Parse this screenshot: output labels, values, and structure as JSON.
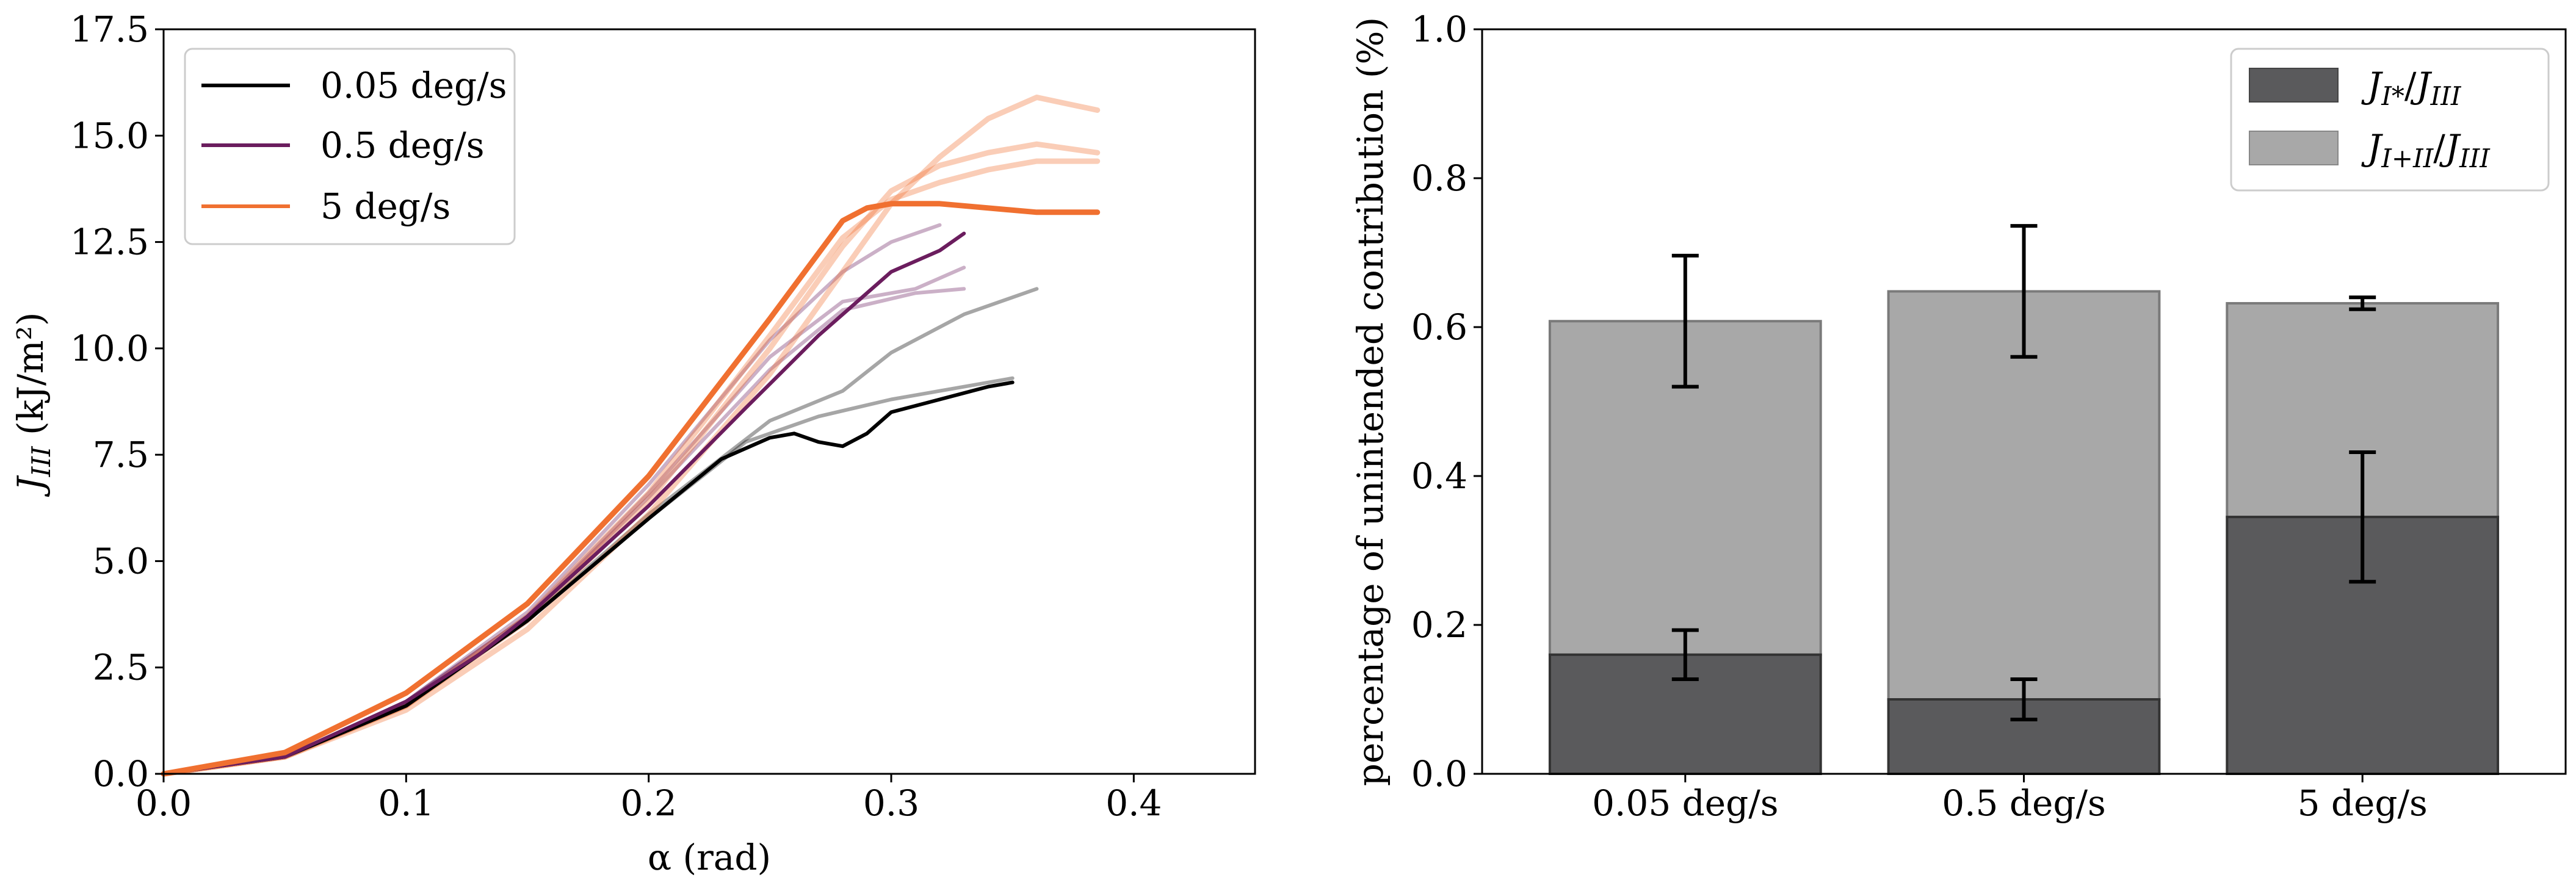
{
  "chart_data": [
    {
      "type": "line",
      "xlabel": "α (rad)",
      "ylabel_main": "J",
      "ylabel_sub": "III",
      "ylabel_unit": " (kJ/m²)",
      "xlim": [
        0,
        0.45
      ],
      "ylim": [
        0,
        17.5
      ],
      "xticks": [
        "0.0",
        "0.1",
        "0.2",
        "0.3",
        "0.4"
      ],
      "xtick_values": [
        0,
        0.1,
        0.2,
        0.3,
        0.4
      ],
      "yticks": [
        "0.0",
        "2.5",
        "5.0",
        "7.5",
        "10.0",
        "12.5",
        "15.0",
        "17.5"
      ],
      "ytick_values": [
        0,
        2.5,
        5,
        7.5,
        10,
        12.5,
        15,
        17.5
      ],
      "legend": [
        {
          "label": "0.05 deg/s",
          "color": "#000000"
        },
        {
          "label": "0.5 deg/s",
          "color": "#6b1d5e"
        },
        {
          "label": "5 deg/s",
          "color": "#f07030"
        }
      ],
      "series": [
        {
          "name": "0.05 deg/s (a)",
          "color": "#000000",
          "opacity": 1.0,
          "width": 6,
          "x": [
            0,
            0.05,
            0.1,
            0.15,
            0.2,
            0.23,
            0.25,
            0.26,
            0.27,
            0.28,
            0.29,
            0.3,
            0.32,
            0.34,
            0.35
          ],
          "y": [
            0,
            0.4,
            1.6,
            3.6,
            6.0,
            7.4,
            7.9,
            8.0,
            7.8,
            7.7,
            8.0,
            8.5,
            8.8,
            9.1,
            9.2
          ]
        },
        {
          "name": "0.05 deg/s (b)",
          "color": "#000000",
          "opacity": 0.35,
          "width": 6,
          "x": [
            0,
            0.05,
            0.1,
            0.15,
            0.2,
            0.24,
            0.27,
            0.3,
            0.32,
            0.35
          ],
          "y": [
            0,
            0.4,
            1.6,
            3.6,
            6.0,
            7.8,
            8.4,
            8.8,
            9.0,
            9.3
          ]
        },
        {
          "name": "0.05 deg/s (c)",
          "color": "#000000",
          "opacity": 0.35,
          "width": 6,
          "x": [
            0,
            0.05,
            0.1,
            0.15,
            0.2,
            0.25,
            0.28,
            0.3,
            0.33,
            0.36
          ],
          "y": [
            0,
            0.4,
            1.6,
            3.6,
            6.1,
            8.3,
            9.0,
            9.9,
            10.8,
            11.4
          ]
        },
        {
          "name": "0.5 deg/s (a)",
          "color": "#6b1d5e",
          "opacity": 1.0,
          "width": 6,
          "x": [
            0,
            0.05,
            0.1,
            0.13,
            0.15,
            0.2,
            0.24,
            0.27,
            0.3,
            0.32,
            0.33
          ],
          "y": [
            0,
            0.4,
            1.7,
            2.8,
            3.7,
            6.3,
            8.6,
            10.3,
            11.8,
            12.3,
            12.7
          ]
        },
        {
          "name": "0.5 deg/s (b)",
          "color": "#6b1d5e",
          "opacity": 0.35,
          "width": 6,
          "x": [
            0,
            0.05,
            0.1,
            0.15,
            0.2,
            0.25,
            0.28,
            0.31,
            0.33
          ],
          "y": [
            0,
            0.4,
            1.7,
            3.7,
            6.5,
            9.5,
            10.9,
            11.3,
            11.4
          ]
        },
        {
          "name": "0.5 deg/s (c)",
          "color": "#6b1d5e",
          "opacity": 0.35,
          "width": 6,
          "x": [
            0,
            0.05,
            0.1,
            0.15,
            0.2,
            0.25,
            0.28,
            0.31,
            0.33
          ],
          "y": [
            0,
            0.4,
            1.7,
            3.7,
            6.6,
            9.8,
            11.1,
            11.4,
            11.9
          ]
        },
        {
          "name": "0.5 deg/s (d)",
          "color": "#6b1d5e",
          "opacity": 0.35,
          "width": 6,
          "x": [
            0,
            0.05,
            0.1,
            0.15,
            0.2,
            0.25,
            0.28,
            0.3,
            0.32
          ],
          "y": [
            0,
            0.4,
            1.7,
            3.8,
            6.8,
            10.2,
            11.8,
            12.5,
            12.9
          ]
        },
        {
          "name": "5 deg/s (a)",
          "color": "#f07030",
          "opacity": 1.0,
          "width": 9,
          "x": [
            0,
            0.05,
            0.1,
            0.15,
            0.2,
            0.25,
            0.28,
            0.29,
            0.3,
            0.32,
            0.34,
            0.36,
            0.385
          ],
          "y": [
            0,
            0.5,
            1.9,
            4.0,
            7.0,
            10.7,
            13.0,
            13.3,
            13.4,
            13.4,
            13.3,
            13.2,
            13.2
          ]
        },
        {
          "name": "5 deg/s (b)",
          "color": "#f07030",
          "opacity": 0.35,
          "width": 9,
          "x": [
            0,
            0.05,
            0.1,
            0.15,
            0.2,
            0.25,
            0.28,
            0.3,
            0.32,
            0.34,
            0.36,
            0.385
          ],
          "y": [
            0,
            0.4,
            1.5,
            3.4,
            6.1,
            9.4,
            11.8,
            13.4,
            14.5,
            15.4,
            15.9,
            15.6
          ]
        },
        {
          "name": "5 deg/s (c)",
          "color": "#f07030",
          "opacity": 0.35,
          "width": 9,
          "x": [
            0,
            0.05,
            0.1,
            0.15,
            0.2,
            0.25,
            0.28,
            0.3,
            0.32,
            0.34,
            0.36,
            0.385
          ],
          "y": [
            0,
            0.4,
            1.6,
            3.6,
            6.4,
            10.0,
            12.4,
            13.7,
            14.3,
            14.6,
            14.8,
            14.6
          ]
        },
        {
          "name": "5 deg/s (d)",
          "color": "#f07030",
          "opacity": 0.35,
          "width": 9,
          "x": [
            0,
            0.05,
            0.1,
            0.15,
            0.2,
            0.25,
            0.28,
            0.3,
            0.32,
            0.34,
            0.36,
            0.385
          ],
          "y": [
            0,
            0.4,
            1.6,
            3.7,
            6.6,
            10.3,
            12.6,
            13.5,
            13.9,
            14.2,
            14.4,
            14.4
          ]
        }
      ]
    },
    {
      "type": "bar",
      "stacked": true,
      "ylabel": "percentage of unintended contribution (%)",
      "categories": [
        "0.05 deg/s",
        "0.5 deg/s",
        "5 deg/s"
      ],
      "ylim": [
        0,
        1.0
      ],
      "yticks": [
        "0.0",
        "0.2",
        "0.4",
        "0.6",
        "0.8",
        "1.0"
      ],
      "ytick_values": [
        0,
        0.2,
        0.4,
        0.6,
        0.8,
        1.0
      ],
      "series": [
        {
          "name": "J_I*/J_III",
          "color": "#5a5a5c",
          "values": [
            0.16,
            0.1,
            0.345
          ],
          "err": [
            0.033,
            0.027,
            0.087
          ]
        },
        {
          "name": "J_I+II/J_III",
          "color": "#a8a8a8",
          "values": [
            0.448,
            0.548,
            0.287
          ],
          "totals": [
            0.608,
            0.648,
            0.632
          ],
          "err": [
            0.088,
            0.088,
            0.008
          ]
        }
      ],
      "legend": [
        {
          "main": "J",
          "sub": "I*",
          "slash": "/",
          "main2": "J",
          "sub2": "III",
          "color": "#5a5a5c"
        },
        {
          "main": "J",
          "sub": "I+II",
          "slash": "/",
          "main2": "J",
          "sub2": "III",
          "color": "#a8a8a8"
        }
      ]
    }
  ]
}
